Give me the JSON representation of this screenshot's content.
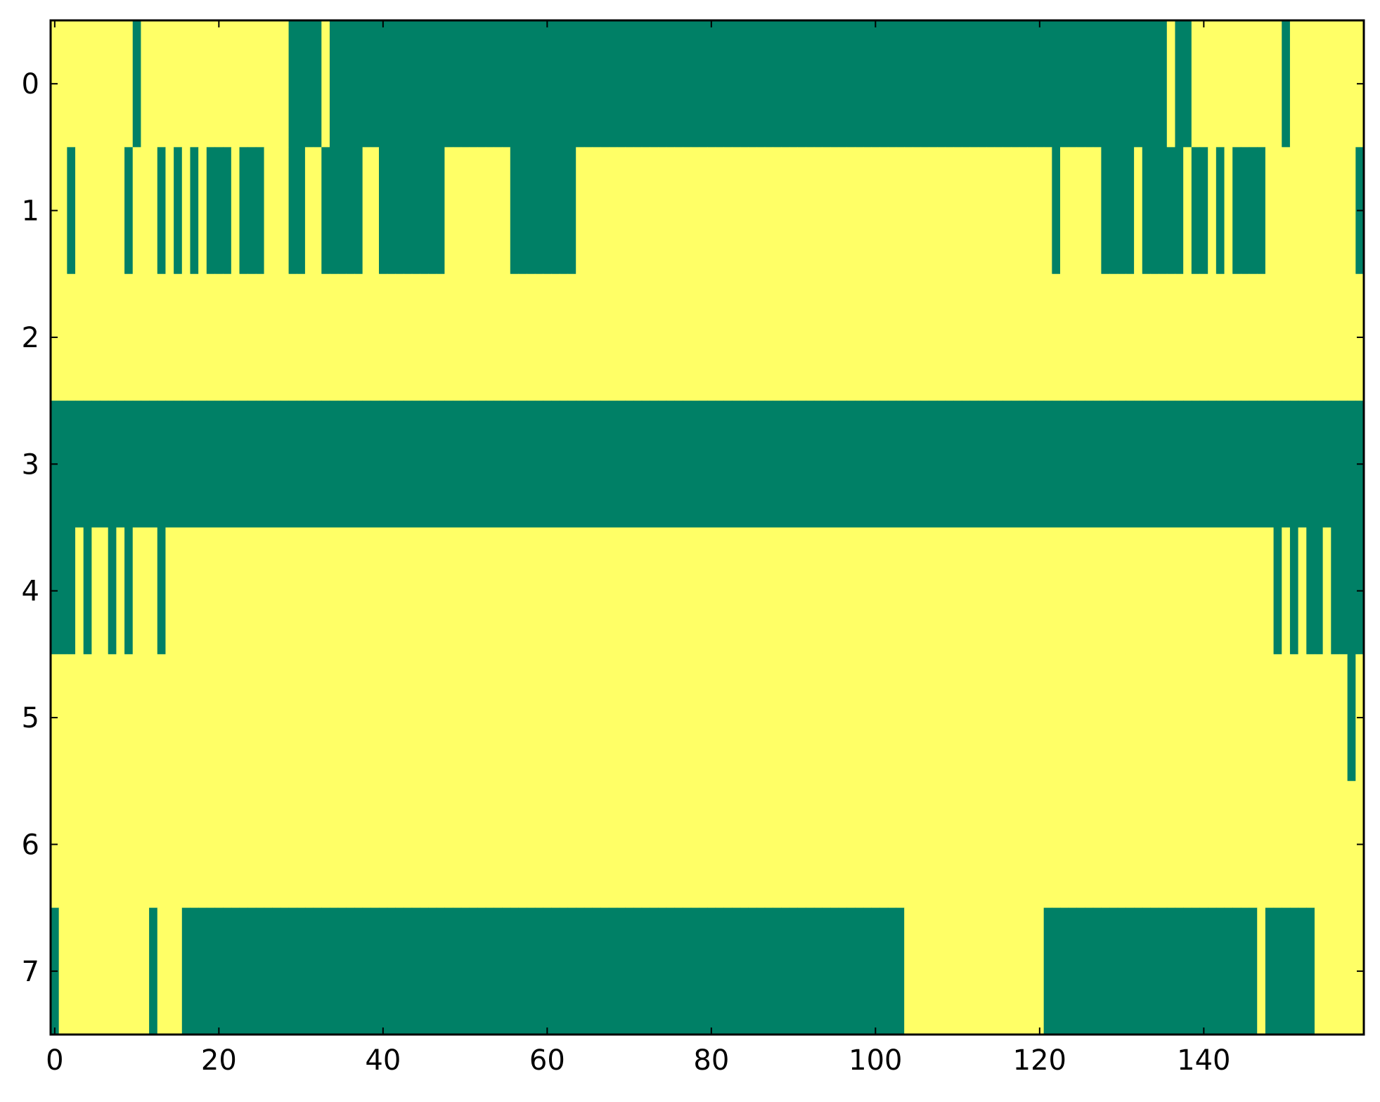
{
  "chart_data": {
    "type": "heatmap",
    "title": "",
    "xlabel": "",
    "ylabel": "",
    "n_rows": 8,
    "n_cols": 160,
    "xlim": [
      -0.5,
      159.5
    ],
    "ylim": [
      7.5,
      -0.5
    ],
    "x_ticks": [
      "0",
      "20",
      "40",
      "60",
      "80",
      "100",
      "120",
      "140"
    ],
    "y_ticks": [
      "0",
      "1",
      "2",
      "3",
      "4",
      "5",
      "6",
      "7"
    ],
    "colors": {
      "0": "#008066",
      "1": "#ffff66"
    },
    "default_value": 1,
    "value_0_runs": [
      [
        [
          10,
          10
        ],
        [
          29,
          32
        ],
        [
          34,
          135
        ],
        [
          137,
          138
        ],
        [
          150,
          150
        ]
      ],
      [
        [
          2,
          2
        ],
        [
          9,
          9
        ],
        [
          13,
          13
        ],
        [
          15,
          15
        ],
        [
          17,
          17
        ],
        [
          19,
          21
        ],
        [
          23,
          25
        ],
        [
          29,
          30
        ],
        [
          33,
          37
        ],
        [
          40,
          47
        ],
        [
          56,
          63
        ],
        [
          122,
          122
        ],
        [
          128,
          131
        ],
        [
          133,
          137
        ],
        [
          139,
          140
        ],
        [
          142,
          142
        ],
        [
          144,
          147
        ],
        [
          159,
          159
        ]
      ],
      [],
      [
        [
          0,
          159
        ]
      ],
      [
        [
          0,
          2
        ],
        [
          4,
          4
        ],
        [
          7,
          7
        ],
        [
          9,
          9
        ],
        [
          13,
          13
        ],
        [
          149,
          149
        ],
        [
          151,
          151
        ],
        [
          153,
          154
        ],
        [
          156,
          159
        ]
      ],
      [
        [
          158,
          158
        ]
      ],
      [],
      [
        [
          0,
          0
        ],
        [
          12,
          12
        ],
        [
          16,
          103
        ],
        [
          121,
          146
        ],
        [
          148,
          153
        ]
      ]
    ],
    "grid": false
  }
}
